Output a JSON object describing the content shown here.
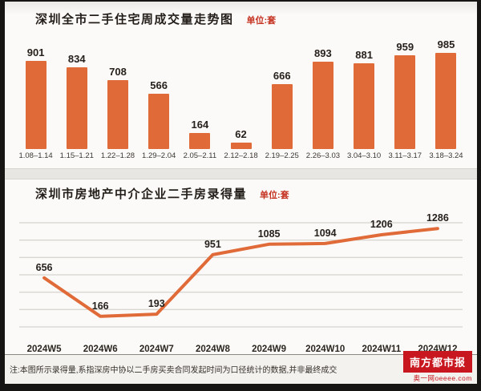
{
  "chart_data": [
    {
      "type": "bar",
      "title": "深圳全市二手住宅周成交量走势图",
      "unit_label": "单位:套",
      "categories": [
        "1.08–1.14",
        "1.15–1.21",
        "1.22–1.28",
        "1.29–2.04",
        "2.05–2.11",
        "2.12–2.18",
        "2.19–2.25",
        "2.26–3.03",
        "3.04–3.10",
        "3.11–3.17",
        "3.18–3.24"
      ],
      "values": [
        901,
        834,
        708,
        566,
        164,
        62,
        666,
        893,
        881,
        959,
        985
      ],
      "xlabel": "",
      "ylabel": "",
      "ylim": [
        0,
        1050
      ],
      "grid": false,
      "bar_color": "#e06a38",
      "value_labels": true
    },
    {
      "type": "line",
      "title": "深圳市房地产中介企业二手房录得量",
      "unit_label": "单位:套",
      "categories": [
        "2024W5",
        "2024W6",
        "2024W7",
        "2024W8",
        "2024W9",
        "2024W10",
        "2024W11",
        "2024W12"
      ],
      "values": [
        656,
        166,
        193,
        951,
        1085,
        1094,
        1206,
        1286
      ],
      "xlabel": "",
      "ylabel": "",
      "ylim": [
        0,
        1400
      ],
      "grid": true,
      "gridline_count": 7,
      "line_color": "#e06a38",
      "value_labels": true
    }
  ],
  "footer": {
    "note": "注:本图所示录得量,系指深房中协以二手房买卖合同发起时间为口径统计的数据,并非最终成交",
    "brand": {
      "name": "南方都市报",
      "tagline": "奥一网oeeee.com",
      "color": "#c8171e"
    }
  },
  "colors": {
    "accent": "#e06a38",
    "unit_red": "#c53120",
    "text_dark": "#26211d",
    "gridline": "#ccc9c3"
  }
}
